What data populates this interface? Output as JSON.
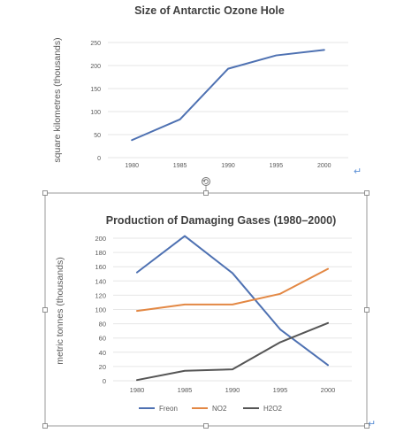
{
  "colors": {
    "axis_text": "#595959",
    "title": "#404040",
    "grid": "#e6e6e6",
    "ozone_line": "#4e71b2",
    "freon": "#4e71b2",
    "no2": "#e38844",
    "h2o2": "#555555",
    "selection_frame": "#999999",
    "paragraph_mark": "#5b8fd6"
  },
  "icons": {
    "rotate_handle": "rotate-icon",
    "paragraph_mark": "return-arrow-icon",
    "paragraph_glyph": "↵"
  },
  "chart_data": [
    {
      "type": "line",
      "title": "Size of Antarctic Ozone Hole",
      "xlabel": "",
      "ylabel": "square kilometres (thousands)",
      "categories": [
        "1980",
        "1985",
        "1990",
        "1995",
        "2000"
      ],
      "ylim": [
        0,
        250
      ],
      "yticks": [
        0,
        50,
        100,
        150,
        200,
        250
      ],
      "grid": true,
      "legend": "none",
      "series": [
        {
          "values": [
            38,
            83,
            193,
            222,
            234
          ]
        }
      ]
    },
    {
      "type": "line",
      "title": "Production of Damaging Gases (1980–2000)",
      "xlabel": "",
      "ylabel": "metric tonnes (thousands)",
      "categories": [
        "1980",
        "1985",
        "1990",
        "1995",
        "2000"
      ],
      "ylim": [
        0,
        200
      ],
      "yticks": [
        0,
        20,
        40,
        60,
        80,
        100,
        120,
        140,
        160,
        180,
        200
      ],
      "grid": true,
      "legend": "bottom",
      "series": [
        {
          "name": "Freon",
          "values": [
            152,
            203,
            151,
            72,
            22
          ]
        },
        {
          "name": "NO2",
          "values": [
            98,
            107,
            107,
            122,
            157
          ]
        },
        {
          "name": "H2O2",
          "values": [
            1,
            14,
            16,
            54,
            81
          ]
        }
      ]
    }
  ]
}
